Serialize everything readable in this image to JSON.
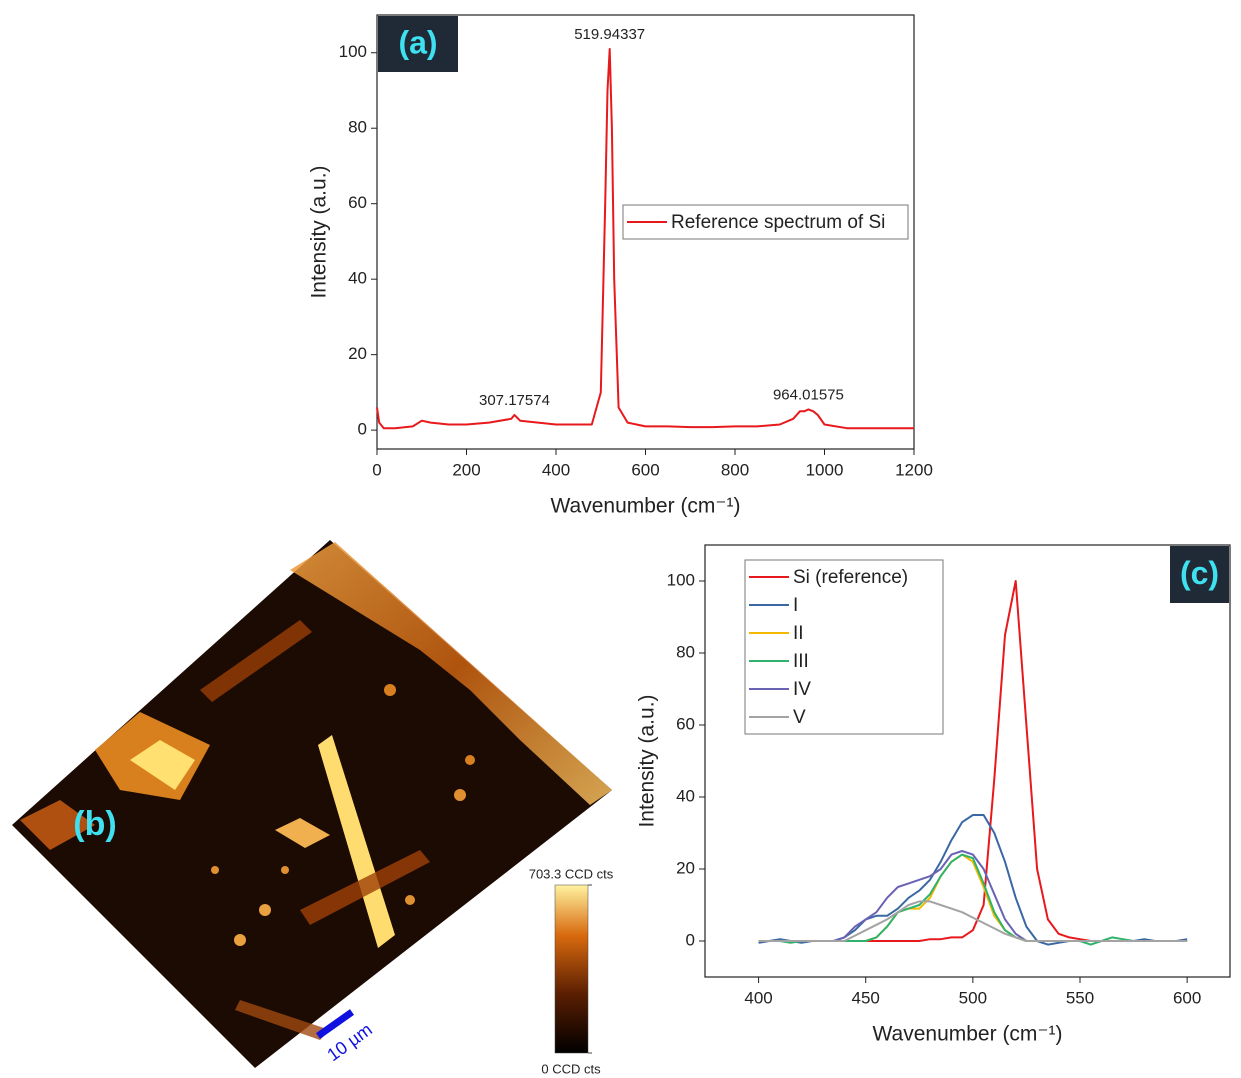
{
  "chart_data": [
    {
      "type": "line",
      "panel_label": "(a)",
      "x": [
        0,
        5,
        15,
        40,
        80,
        100,
        120,
        160,
        200,
        250,
        300,
        307,
        320,
        360,
        400,
        440,
        480,
        500,
        510,
        515,
        520,
        525,
        530,
        540,
        560,
        600,
        650,
        700,
        750,
        800,
        850,
        900,
        930,
        945,
        955,
        964,
        975,
        985,
        1000,
        1050,
        1100,
        1150,
        1200
      ],
      "series": [
        {
          "name": "Reference spectrum of Si",
          "color": "#e8191c",
          "values": [
            6,
            2,
            0.5,
            0.5,
            1,
            2.5,
            2,
            1.5,
            1.5,
            2,
            3,
            4,
            2.5,
            2,
            1.5,
            1.5,
            1.5,
            10,
            60,
            90,
            101,
            80,
            40,
            6,
            2,
            1,
            1,
            0.8,
            0.8,
            1,
            1,
            1.5,
            3,
            5,
            5,
            5.5,
            5,
            4,
            1.5,
            0.5,
            0.5,
            0.5,
            0.5
          ]
        }
      ],
      "xlim": [
        0,
        1200
      ],
      "xticks": [
        0,
        200,
        400,
        600,
        800,
        1000,
        1200
      ],
      "ylim": [
        -5,
        110
      ],
      "yticks": [
        0,
        20,
        40,
        60,
        80,
        100
      ],
      "xlabel": "Wavenumber (cm⁻¹)",
      "ylabel": "Intensity (a.u.)",
      "legend": "center right",
      "annotations": [
        {
          "x": 519.94337,
          "label": "519.94337"
        },
        {
          "x": 307.17574,
          "label": "307.17574"
        },
        {
          "x": 964.01575,
          "label": "964.01575"
        }
      ]
    },
    {
      "type": "surface",
      "panel_label": "(b)",
      "colorbar_ticks": [
        {
          "value": 0,
          "label": "0 CCD cts"
        },
        {
          "value": 703.3,
          "label": "703.3 CCD cts"
        }
      ],
      "scale_bar": "10 µm"
    },
    {
      "type": "line",
      "panel_label": "(c)",
      "x": [
        400,
        405,
        410,
        415,
        420,
        425,
        430,
        435,
        440,
        445,
        450,
        455,
        460,
        465,
        470,
        475,
        480,
        485,
        490,
        495,
        500,
        505,
        510,
        515,
        520,
        525,
        530,
        535,
        540,
        545,
        550,
        555,
        560,
        565,
        570,
        575,
        580,
        585,
        590,
        595,
        600
      ],
      "series": [
        {
          "name": "Si (reference)",
          "color": "#e8191c",
          "values": [
            0,
            0,
            0,
            0,
            0,
            0,
            0,
            0,
            0,
            0,
            0,
            0,
            0,
            0,
            0,
            0,
            0.5,
            0.5,
            1,
            1,
            3,
            10,
            45,
            85,
            100,
            60,
            20,
            6,
            2,
            1,
            0.5,
            0,
            0,
            0,
            0,
            0,
            0,
            0,
            0,
            0,
            0
          ]
        },
        {
          "name": "I",
          "color": "#3a68a3",
          "values": [
            -0.5,
            0,
            0.5,
            0,
            -0.5,
            0,
            0,
            0,
            1,
            3,
            6,
            7,
            7,
            9,
            12,
            14,
            17,
            22,
            28,
            33,
            35,
            35,
            30,
            22,
            12,
            4,
            0,
            -1,
            -0.5,
            0,
            0,
            0,
            0,
            0,
            0,
            0,
            0.5,
            0,
            0,
            0,
            0.5
          ]
        },
        {
          "name": "II",
          "color": "#f5b800",
          "values": [
            0,
            0,
            0,
            0,
            0,
            0,
            0,
            0,
            0,
            0,
            0,
            1,
            4,
            8,
            9,
            9,
            12,
            18,
            22,
            24,
            22,
            15,
            7,
            3,
            1,
            0,
            0,
            0,
            0,
            0,
            0,
            0,
            0,
            0,
            0,
            0,
            0,
            0,
            0,
            0,
            0
          ]
        },
        {
          "name": "III",
          "color": "#2db36b",
          "values": [
            0,
            0,
            0,
            -0.5,
            0,
            0,
            0,
            0,
            0,
            0,
            0,
            1,
            4,
            8,
            9,
            10,
            13,
            18,
            22,
            24,
            23,
            16,
            8,
            3,
            1,
            0,
            0,
            0,
            0,
            0,
            0,
            -1,
            0,
            1,
            0.5,
            0,
            0,
            0,
            0,
            0,
            0
          ]
        },
        {
          "name": "IV",
          "color": "#6a62b3",
          "values": [
            0,
            0,
            0,
            0,
            0,
            0,
            0,
            0,
            1,
            4,
            6,
            8,
            12,
            15,
            16,
            17,
            18,
            20,
            24,
            25,
            24,
            20,
            13,
            6,
            2,
            0,
            0,
            0,
            0,
            0,
            0,
            0,
            0,
            0,
            0,
            0,
            0,
            0,
            0,
            0,
            0
          ]
        },
        {
          "name": "V",
          "color": "#a3a3a3",
          "values": [
            0,
            0,
            0,
            0,
            0,
            0,
            0,
            0,
            0,
            1.5,
            3,
            4.5,
            6,
            8,
            10,
            11,
            11,
            10,
            9,
            8,
            6.5,
            5,
            3.5,
            2,
            1,
            0,
            0,
            0,
            0,
            0,
            0,
            0,
            0,
            0,
            0,
            0,
            0,
            0,
            0,
            0,
            0
          ]
        }
      ],
      "xlim": [
        375,
        620
      ],
      "xticks": [
        400,
        450,
        500,
        550,
        600
      ],
      "ylim": [
        -10,
        110
      ],
      "yticks": [
        0,
        20,
        40,
        60,
        80,
        100
      ],
      "xlabel": "Wavenumber (cm⁻¹)",
      "ylabel": "Intensity (a.u.)",
      "legend": "upper left"
    }
  ]
}
